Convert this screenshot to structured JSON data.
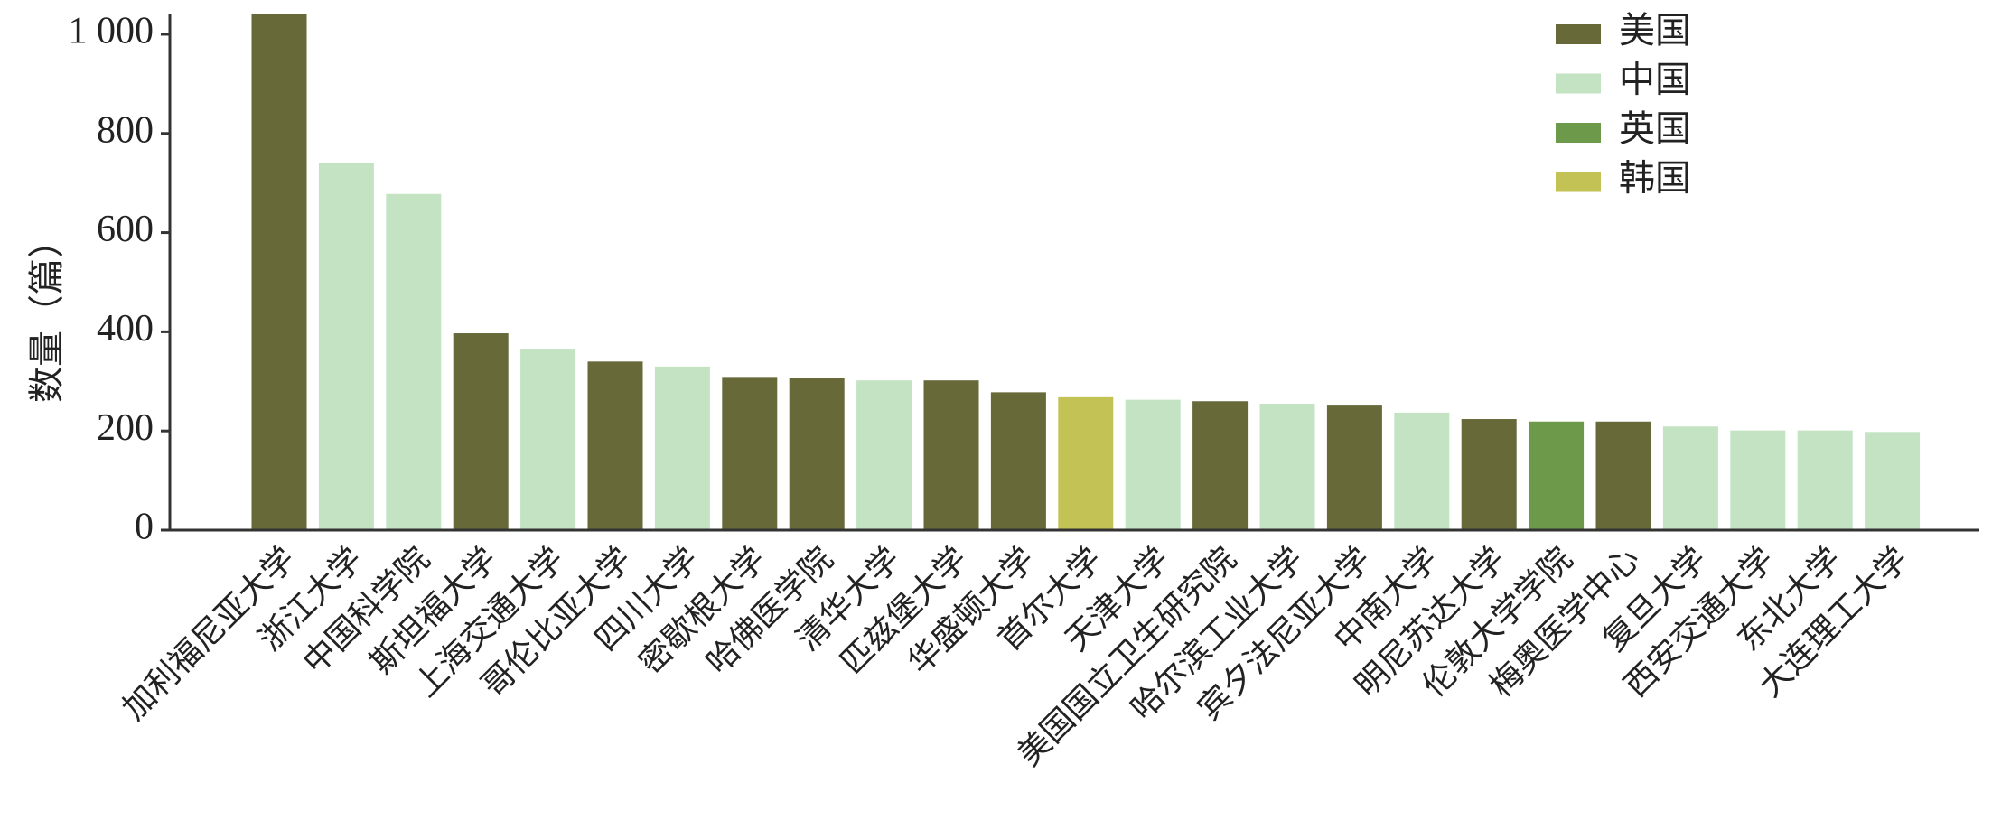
{
  "chart_data": {
    "type": "bar",
    "y_label": "数量（篇）",
    "categories": [
      "加利福尼亚大学",
      "浙江大学",
      "中国科学院",
      "斯坦福大学",
      "上海交通大学",
      "哥伦比亚大学",
      "四川大学",
      "密歇根大学",
      "哈佛医学院",
      "清华大学",
      "匹兹堡大学",
      "华盛顿大学",
      "首尔大学",
      "天津大学",
      "美国国立卫生研究院",
      "哈尔滨工业大学",
      "宾夕法尼亚大学",
      "中南大学",
      "明尼苏达大学",
      "伦敦大学学院",
      "梅奥医学中心",
      "复旦大学",
      "西安交通大学",
      "东北大学",
      "大连理工大学"
    ],
    "series": [
      {
        "name": "美国",
        "color": "#676a38",
        "values": [
          1040,
          null,
          null,
          397,
          null,
          340,
          null,
          309,
          307,
          null,
          302,
          278,
          null,
          null,
          260,
          null,
          253,
          null,
          224,
          null,
          219,
          null,
          null,
          null,
          null
        ]
      },
      {
        "name": "中国",
        "color": "#c3e3c3",
        "values": [
          null,
          740,
          678,
          null,
          366,
          null,
          330,
          null,
          null,
          302,
          null,
          null,
          null,
          263,
          null,
          255,
          null,
          237,
          null,
          null,
          null,
          209,
          201,
          201,
          198
        ]
      },
      {
        "name": "英国",
        "color": "#6d9a4a",
        "values": [
          null,
          null,
          null,
          null,
          null,
          null,
          null,
          null,
          null,
          null,
          null,
          null,
          null,
          null,
          null,
          null,
          null,
          null,
          null,
          219,
          null,
          null,
          null,
          null,
          null
        ]
      },
      {
        "name": "韩国",
        "color": "#c3c255",
        "values": [
          null,
          null,
          null,
          null,
          null,
          null,
          null,
          null,
          null,
          null,
          null,
          null,
          268,
          null,
          null,
          null,
          null,
          null,
          null,
          null,
          null,
          null,
          null,
          null,
          null
        ]
      }
    ],
    "ylim": [
      0,
      1040
    ],
    "yticks": [
      0,
      200,
      400,
      600,
      800,
      {
        "value": 1000,
        "label": "1 000"
      }
    ],
    "legend": "top-right"
  }
}
